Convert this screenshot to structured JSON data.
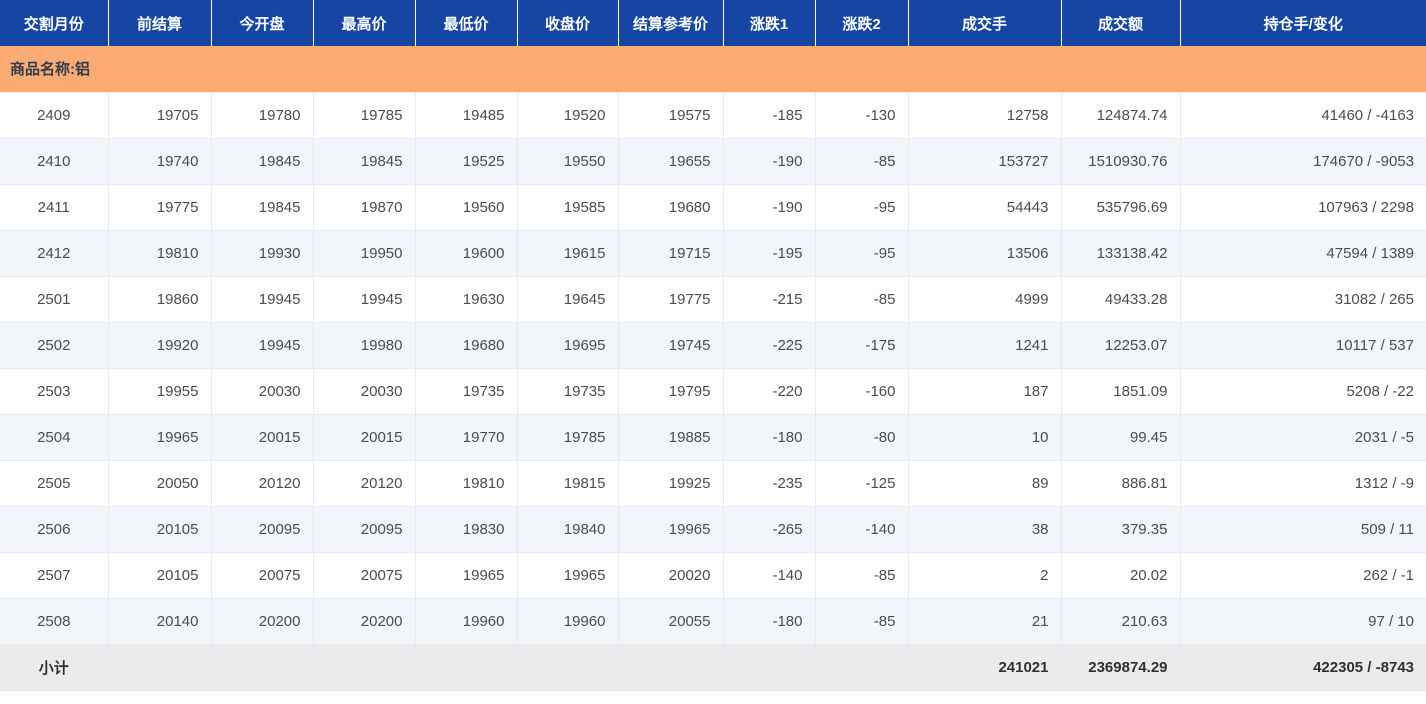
{
  "table": {
    "title": "futures-daily-quotes",
    "columns": [
      "交割月份",
      "前结算",
      "今开盘",
      "最高价",
      "最低价",
      "收盘价",
      "结算参考价",
      "涨跌1",
      "涨跌2",
      "成交手",
      "成交额",
      "持仓手/变化"
    ],
    "group_label": "商品名称:铝",
    "rows": [
      [
        "2409",
        "19705",
        "19780",
        "19785",
        "19485",
        "19520",
        "19575",
        "-185",
        "-130",
        "12758",
        "124874.74",
        "41460 / -4163"
      ],
      [
        "2410",
        "19740",
        "19845",
        "19845",
        "19525",
        "19550",
        "19655",
        "-190",
        "-85",
        "153727",
        "1510930.76",
        "174670 / -9053"
      ],
      [
        "2411",
        "19775",
        "19845",
        "19870",
        "19560",
        "19585",
        "19680",
        "-190",
        "-95",
        "54443",
        "535796.69",
        "107963 / 2298"
      ],
      [
        "2412",
        "19810",
        "19930",
        "19950",
        "19600",
        "19615",
        "19715",
        "-195",
        "-95",
        "13506",
        "133138.42",
        "47594 / 1389"
      ],
      [
        "2501",
        "19860",
        "19945",
        "19945",
        "19630",
        "19645",
        "19775",
        "-215",
        "-85",
        "4999",
        "49433.28",
        "31082 / 265"
      ],
      [
        "2502",
        "19920",
        "19945",
        "19980",
        "19680",
        "19695",
        "19745",
        "-225",
        "-175",
        "1241",
        "12253.07",
        "10117 / 537"
      ],
      [
        "2503",
        "19955",
        "20030",
        "20030",
        "19735",
        "19735",
        "19795",
        "-220",
        "-160",
        "187",
        "1851.09",
        "5208 / -22"
      ],
      [
        "2504",
        "19965",
        "20015",
        "20015",
        "19770",
        "19785",
        "19885",
        "-180",
        "-80",
        "10",
        "99.45",
        "2031 / -5"
      ],
      [
        "2505",
        "20050",
        "20120",
        "20120",
        "19810",
        "19815",
        "19925",
        "-235",
        "-125",
        "89",
        "886.81",
        "1312 / -9"
      ],
      [
        "2506",
        "20105",
        "20095",
        "20095",
        "19830",
        "19840",
        "19965",
        "-265",
        "-140",
        "38",
        "379.35",
        "509 / 11"
      ],
      [
        "2507",
        "20105",
        "20075",
        "20075",
        "19965",
        "19965",
        "20020",
        "-140",
        "-85",
        "2",
        "20.02",
        "262 / -1"
      ],
      [
        "2508",
        "20140",
        "20200",
        "20200",
        "19960",
        "19960",
        "20055",
        "-180",
        "-85",
        "21",
        "210.63",
        "97 / 10"
      ]
    ],
    "subtotal": [
      "小计",
      "",
      "",
      "",
      "",
      "",
      "",
      "",
      "",
      "241021",
      "2369874.29",
      "422305 / -8743"
    ],
    "colors": {
      "header_bg": "#1546a5",
      "group_bg": "#fcab74",
      "stripe_bg": "#f2f5fa",
      "subtotal_bg": "#ebebeb",
      "text": "#4c4c4c",
      "header_text": "#ffffff"
    }
  }
}
